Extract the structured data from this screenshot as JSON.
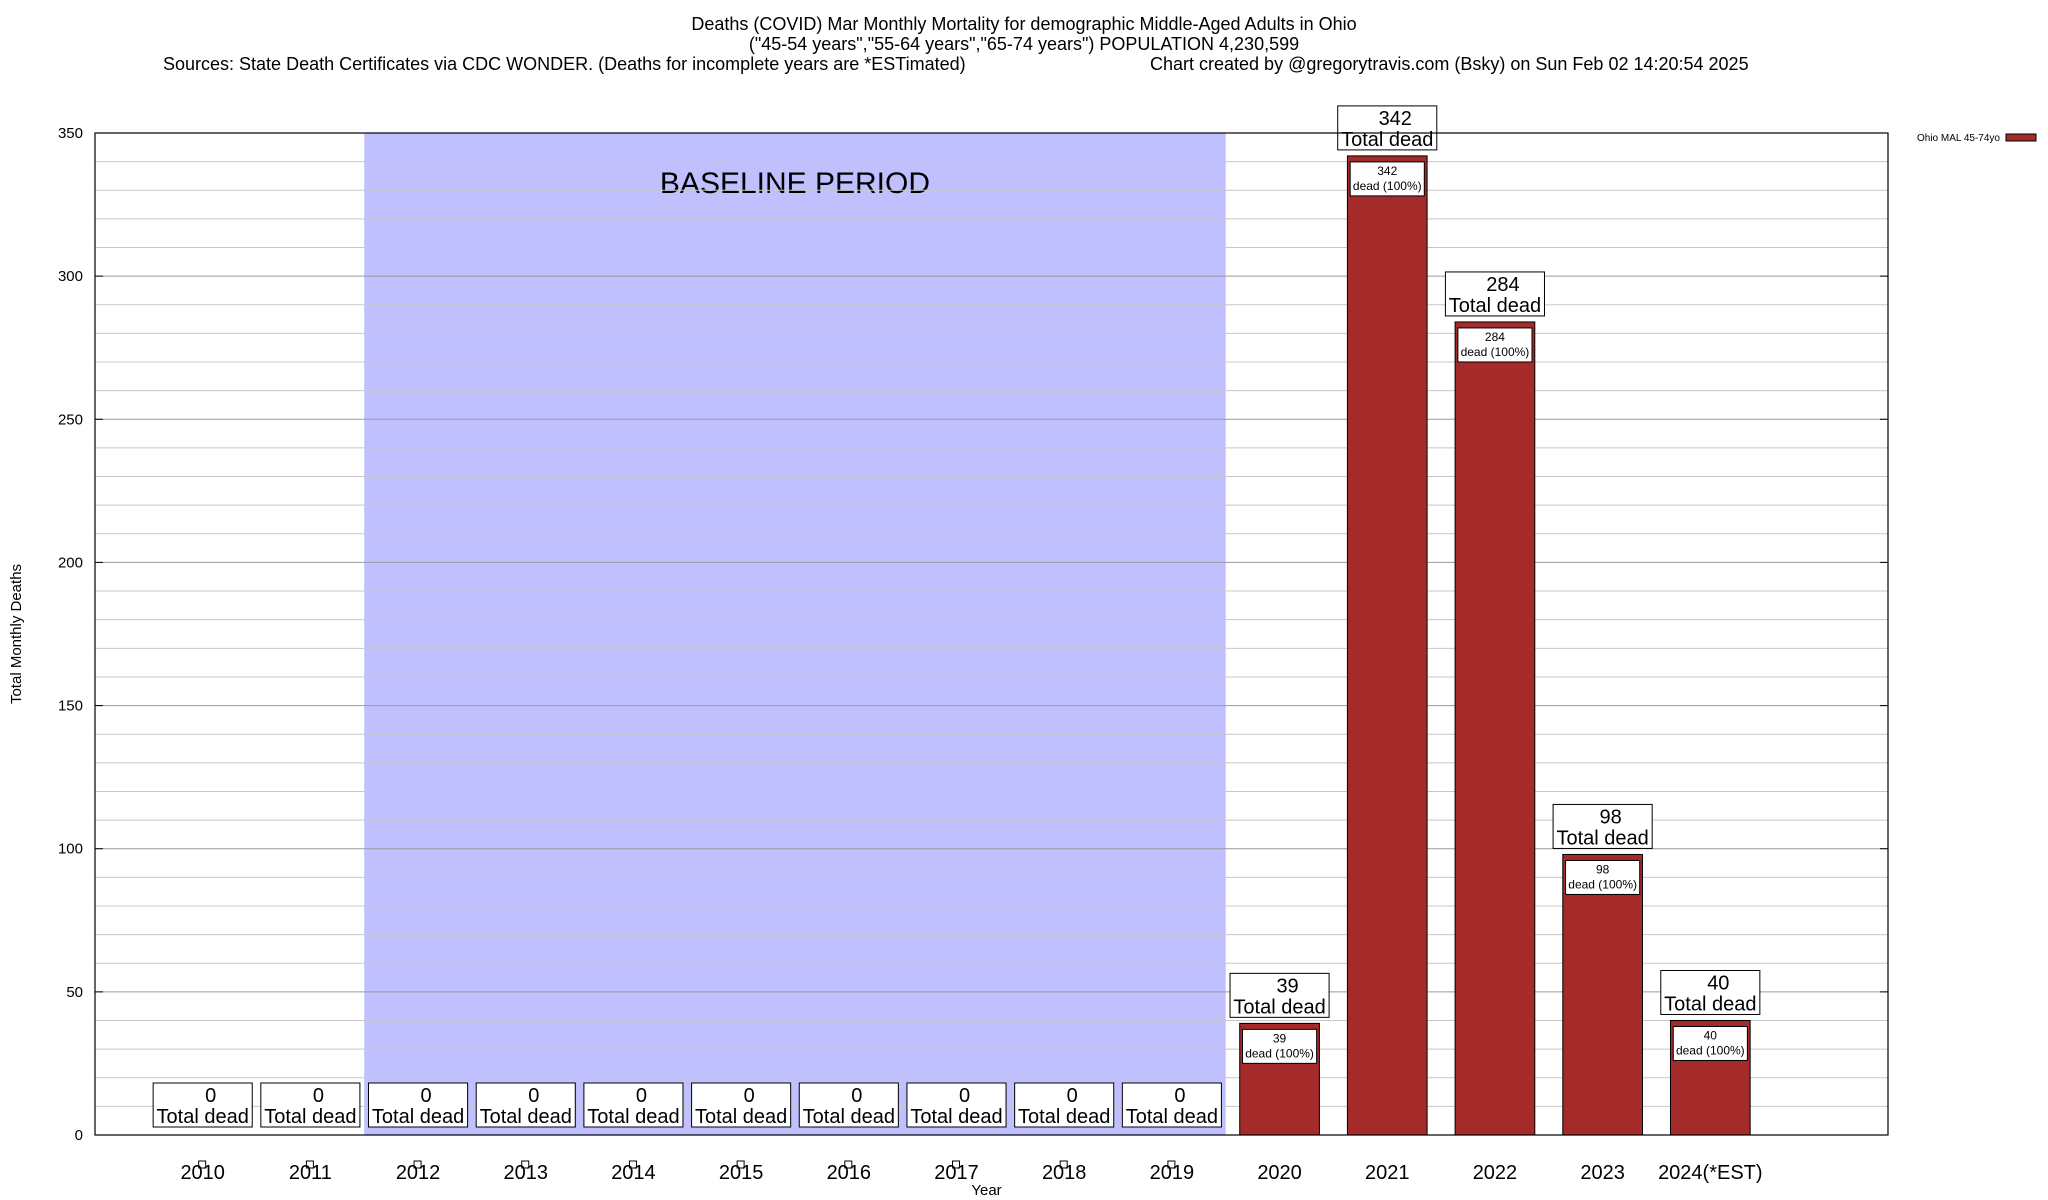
{
  "header": {
    "title": "Deaths (COVID) Mar Monthly Mortality for demographic Middle-Aged Adults in Ohio",
    "subtitle": "(\"45-54 years\",\"55-64 years\",\"65-74 years\") POPULATION 4,230,599",
    "sources": "Sources: State Death Certificates via CDC WONDER. (Deaths for incomplete years are *ESTimated)",
    "credit": "Chart created by @gregorytravis.com (Bsky) on Sun Feb 02 14:20:54 2025"
  },
  "chart_data": {
    "type": "bar",
    "categories": [
      "2010",
      "2011",
      "2012",
      "2013",
      "2014",
      "2015",
      "2016",
      "2017",
      "2018",
      "2019",
      "2020",
      "2021",
      "2022",
      "2023",
      "2024(*EST)"
    ],
    "series": [
      {
        "name": "Ohio MAL 45-74yo",
        "values": [
          0,
          0,
          0,
          0,
          0,
          0,
          0,
          0,
          0,
          0,
          39,
          342,
          284,
          98,
          40
        ],
        "color": "#a52a2a"
      }
    ],
    "total_label": "Total dead",
    "inner_label_suffix": "dead (100%)",
    "xlabel": "Year",
    "ylabel": "Total Monthly Deaths",
    "ylim": [
      0,
      350
    ],
    "yticks": [
      0,
      50,
      100,
      150,
      200,
      250,
      300,
      350
    ],
    "grid": true,
    "legend_position": "top-right",
    "baseline": {
      "label": "BASELINE PERIOD",
      "from": "2012",
      "to": "2019",
      "color": "#c0c0ff"
    }
  }
}
